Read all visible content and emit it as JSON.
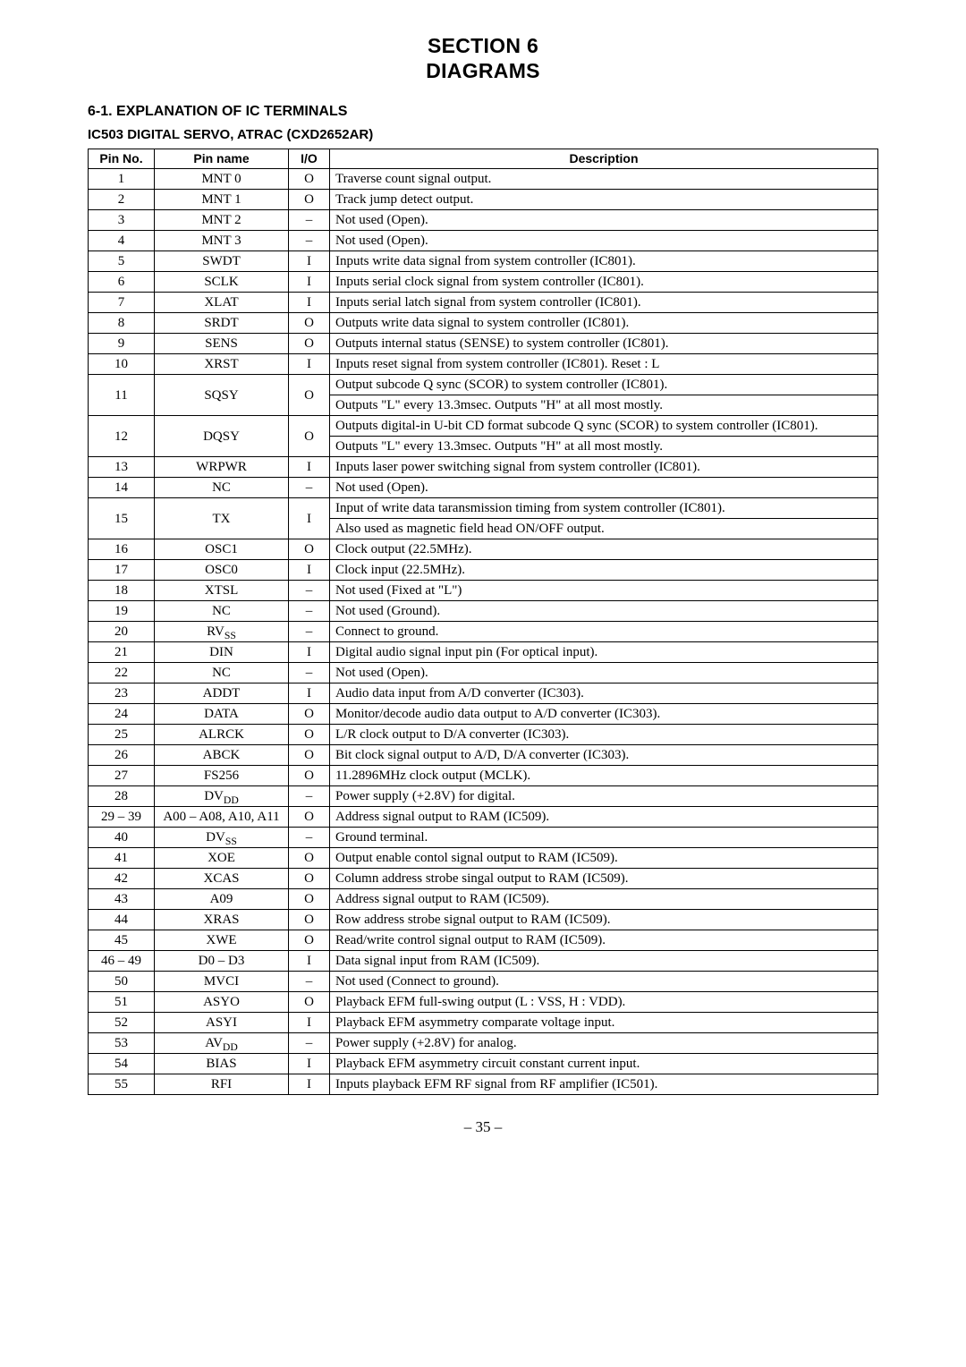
{
  "section_head_line1": "SECTION 6",
  "section_head_line2": "DIAGRAMS",
  "subsection": "6-1. EXPLANATION OF IC TERMINALS",
  "ic_label": "IC503  DIGITAL SERVO, ATRAC (CXD2652AR)",
  "headers": {
    "pin_no": "Pin No.",
    "pin_name": "Pin name",
    "io": "I/O",
    "desc": "Description"
  },
  "rows": [
    {
      "pin": "1",
      "name": "MNT 0",
      "io": "O",
      "desc": "Traverse count signal output."
    },
    {
      "pin": "2",
      "name": "MNT 1",
      "io": "O",
      "desc": "Track jump detect output."
    },
    {
      "pin": "3",
      "name": "MNT 2",
      "io": "–",
      "desc": "Not used (Open)."
    },
    {
      "pin": "4",
      "name": "MNT 3",
      "io": "–",
      "desc": "Not used (Open)."
    },
    {
      "pin": "5",
      "name": "SWDT",
      "io": "I",
      "desc": "Inputs write data signal from system controller (IC801)."
    },
    {
      "pin": "6",
      "name": "SCLK",
      "io": "I",
      "desc": "Inputs serial clock signal from system controller (IC801)."
    },
    {
      "pin": "7",
      "name": "XLAT",
      "io": "I",
      "desc": "Inputs serial latch signal from system controller (IC801)."
    },
    {
      "pin": "8",
      "name": "SRDT",
      "io": "O",
      "desc": "Outputs write data signal to system controller (IC801)."
    },
    {
      "pin": "9",
      "name": "SENS",
      "io": "O",
      "desc": "Outputs internal status (SENSE) to system controller (IC801)."
    },
    {
      "pin": "10",
      "name": "XRST",
      "io": "I",
      "desc": "Inputs reset signal from system controller (IC801).  Reset : L"
    },
    {
      "pin": "11",
      "name": "SQSY",
      "io": "O",
      "desc_lines": [
        "Output subcode Q sync (SCOR) to system controller (IC801).",
        "Outputs \"L\" every 13.3msec. Outputs \"H\" at all most mostly."
      ]
    },
    {
      "pin": "12",
      "name": "DQSY",
      "io": "O",
      "desc_lines": [
        "Outputs digital-in U-bit CD format subcode Q sync (SCOR) to system controller (IC801).",
        "Outputs \"L\" every 13.3msec. Outputs \"H\" at all most mostly."
      ]
    },
    {
      "pin": "13",
      "name": "WRPWR",
      "io": "I",
      "desc": "Inputs laser power switching signal from system controller (IC801)."
    },
    {
      "pin": "14",
      "name": "NC",
      "io": "–",
      "desc": "Not used (Open)."
    },
    {
      "pin": "15",
      "name": "TX",
      "io": "I",
      "desc_lines": [
        "Input of write data taransmission timing from system controller (IC801).",
        "Also used as magnetic field head ON/OFF output."
      ]
    },
    {
      "pin": "16",
      "name": "OSC1",
      "io": "O",
      "desc": "Clock output (22.5MHz)."
    },
    {
      "pin": "17",
      "name": "OSC0",
      "io": "I",
      "desc": "Clock input (22.5MHz)."
    },
    {
      "pin": "18",
      "name": "XTSL",
      "io": "–",
      "desc": "Not used (Fixed at \"L\")"
    },
    {
      "pin": "19",
      "name": "NC",
      "io": "–",
      "desc": "Not used (Ground)."
    },
    {
      "pin": "20",
      "name_html": "RV<span class=\"sub\">SS</span>",
      "io": "–",
      "desc": "Connect to ground."
    },
    {
      "pin": "21",
      "name": "DIN",
      "io": "I",
      "desc": "Digital audio signal input pin (For optical input)."
    },
    {
      "pin": "22",
      "name": "NC",
      "io": "–",
      "desc": "Not used (Open)."
    },
    {
      "pin": "23",
      "name": "ADDT",
      "io": "I",
      "desc": "Audio data input from A/D converter (IC303)."
    },
    {
      "pin": "24",
      "name": "DATA",
      "io": "O",
      "desc": "Monitor/decode audio data output to A/D converter (IC303)."
    },
    {
      "pin": "25",
      "name": "ALRCK",
      "io": "O",
      "desc": "L/R clock output to D/A converter (IC303)."
    },
    {
      "pin": "26",
      "name": "ABCK",
      "io": "O",
      "desc": "Bit clock signal output to A/D, D/A converter (IC303)."
    },
    {
      "pin": "27",
      "name": "FS256",
      "io": "O",
      "desc": "11.2896MHz clock output (MCLK)."
    },
    {
      "pin": "28",
      "name_html": "DV<span class=\"sub\">DD</span>",
      "io": "–",
      "desc": "Power supply (+2.8V) for digital."
    },
    {
      "pin": "29 – 39",
      "name": "A00 – A08, A10, A11",
      "io": "O",
      "desc": "Address signal output to RAM (IC509)."
    },
    {
      "pin": "40",
      "name_html": "DV<span class=\"sub\">SS</span>",
      "io": "–",
      "desc": "Ground terminal."
    },
    {
      "pin": "41",
      "name": "XOE",
      "io": "O",
      "desc": "Output enable contol signal output to RAM (IC509)."
    },
    {
      "pin": "42",
      "name": "XCAS",
      "io": "O",
      "desc": "Column address strobe singal output to RAM (IC509)."
    },
    {
      "pin": "43",
      "name": "A09",
      "io": "O",
      "desc": "Address signal output to RAM (IC509)."
    },
    {
      "pin": "44",
      "name": "XRAS",
      "io": "O",
      "desc": "Row address strobe signal output to RAM (IC509)."
    },
    {
      "pin": "45",
      "name": "XWE",
      "io": "O",
      "desc": "Read/write control signal output to RAM (IC509)."
    },
    {
      "pin": "46 – 49",
      "name": "D0 – D3",
      "io": "I",
      "desc": "Data signal input from RAM (IC509)."
    },
    {
      "pin": "50",
      "name": "MVCI",
      "io": "–",
      "desc": "Not used (Connect to ground)."
    },
    {
      "pin": "51",
      "name": "ASYO",
      "io": "O",
      "desc": "Playback EFM full-swing output (L : VSS, H : VDD)."
    },
    {
      "pin": "52",
      "name": "ASYI",
      "io": "I",
      "desc": "Playback EFM asymmetry comparate voltage input."
    },
    {
      "pin": "53",
      "name_html": "AV<span class=\"sub\">DD</span>",
      "io": "–",
      "desc": "Power supply (+2.8V) for analog."
    },
    {
      "pin": "54",
      "name": "BIAS",
      "io": "I",
      "desc": "Playback EFM asymmetry circuit constant current input."
    },
    {
      "pin": "55",
      "name": "RFI",
      "io": "I",
      "desc": "Inputs playback EFM RF signal from RF amplifier (IC501)."
    }
  ],
  "page_num": "– 35 –"
}
